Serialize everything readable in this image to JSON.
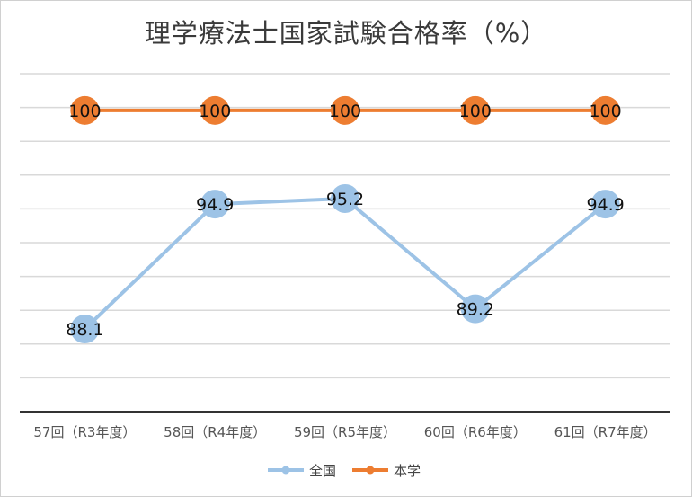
{
  "chart_data": {
    "type": "line",
    "title": "理学療法士国家試験合格率（%）",
    "categories": [
      "57回（R3年度）",
      "58回（R4年度）",
      "59回（R5年度）",
      "60回（R6年度）",
      "61回（R7年度）"
    ],
    "series": [
      {
        "name": "全国",
        "values": [
          88.1,
          94.9,
          95.2,
          89.2,
          94.9
        ],
        "color": "#9DC3E6",
        "labels": [
          "88.1",
          "94.9",
          "95.2",
          "89.2",
          "94.9"
        ]
      },
      {
        "name": "本学",
        "values": [
          100,
          100,
          100,
          100,
          100
        ],
        "color": "#ED7D31",
        "labels": [
          "100",
          "100",
          "100",
          "100",
          "100"
        ]
      }
    ],
    "ylim": [
      83.6,
      102
    ],
    "grid": true,
    "legend_position": "bottom"
  }
}
